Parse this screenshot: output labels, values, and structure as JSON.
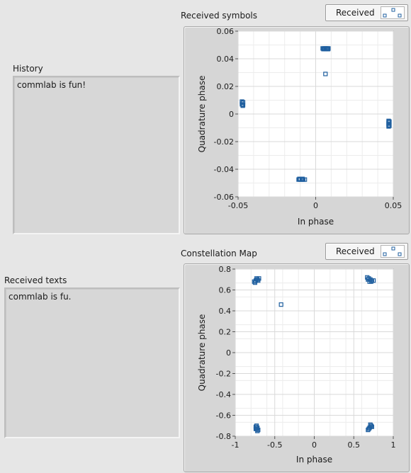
{
  "history": {
    "label": "History",
    "text": "commlab is fun!"
  },
  "received_texts": {
    "label": "Received texts",
    "text": "commlab is fu."
  },
  "legend_label": "Received",
  "marker_color": "#1f5f9f",
  "chart_data": [
    {
      "type": "scatter",
      "title": "Received symbols",
      "xlabel": "In phase",
      "ylabel": "Quadrature phase",
      "xlim": [
        -0.05,
        0.05
      ],
      "ylim": [
        -0.06,
        0.06
      ],
      "xticks": [
        "-0.05",
        "0",
        "0.05"
      ],
      "xtick_values": [
        -0.05,
        0,
        0.05
      ],
      "yticks": [
        "0.06",
        "0.04",
        "0.02",
        "0",
        "-0.02",
        "-0.04",
        "-0.06"
      ],
      "ytick_values": [
        0.06,
        0.04,
        0.02,
        0,
        -0.02,
        -0.04,
        -0.06
      ],
      "grid": true,
      "legend": "top-right",
      "series": [
        {
          "name": "Received",
          "points": [
            [
              0.0045,
              0.0475
            ],
            [
              0.0055,
              0.0475
            ],
            [
              0.0065,
              0.0475
            ],
            [
              0.0075,
              0.0475
            ],
            [
              0.0082,
              0.0475
            ],
            [
              0.005,
              0.047
            ],
            [
              0.006,
              0.047
            ],
            [
              0.007,
              0.047
            ],
            [
              0.008,
              0.047
            ],
            [
              0.0063,
              0.029
            ],
            [
              -0.0475,
              0.009
            ],
            [
              -0.0475,
              0.008
            ],
            [
              -0.0475,
              0.007
            ],
            [
              -0.047,
              0.006
            ],
            [
              -0.0468,
              0.0085
            ],
            [
              -0.0468,
              0.0065
            ],
            [
              0.047,
              -0.005
            ],
            [
              0.047,
              -0.006
            ],
            [
              0.047,
              -0.007
            ],
            [
              0.047,
              -0.008
            ],
            [
              0.047,
              -0.009
            ],
            [
              0.0475,
              -0.0055
            ],
            [
              0.0475,
              -0.0085
            ],
            [
              -0.011,
              -0.0475
            ],
            [
              -0.01,
              -0.0475
            ],
            [
              -0.009,
              -0.0475
            ],
            [
              -0.008,
              -0.0475
            ],
            [
              -0.007,
              -0.0475
            ],
            [
              -0.0105,
              -0.047
            ],
            [
              -0.0085,
              -0.047
            ]
          ]
        }
      ]
    },
    {
      "type": "scatter",
      "title": "Constellation Map",
      "xlabel": "In phase",
      "ylabel": "Quadrature phase",
      "xlim": [
        -1,
        1
      ],
      "ylim": [
        -0.8,
        0.8
      ],
      "xticks": [
        "-1",
        "-0.5",
        "0",
        "0.5",
        "1"
      ],
      "xtick_values": [
        -1,
        -0.5,
        0,
        0.5,
        1
      ],
      "yticks": [
        "0.8",
        "0.6",
        "0.4",
        "0.2",
        "0",
        "-0.2",
        "-0.4",
        "-0.6",
        "-0.8"
      ],
      "ytick_values": [
        0.8,
        0.6,
        0.4,
        0.2,
        0,
        -0.2,
        -0.4,
        -0.6,
        -0.8
      ],
      "grid": true,
      "legend": "top-right",
      "series": [
        {
          "name": "Received",
          "points": [
            [
              -0.76,
              0.68
            ],
            [
              -0.74,
              0.69
            ],
            [
              -0.72,
              0.7
            ],
            [
              -0.7,
              0.71
            ],
            [
              -0.75,
              0.67
            ],
            [
              -0.71,
              0.69
            ],
            [
              -0.73,
              0.71
            ],
            [
              0.67,
              0.72
            ],
            [
              0.69,
              0.71
            ],
            [
              0.71,
              0.7
            ],
            [
              0.73,
              0.69
            ],
            [
              0.7,
              0.68
            ],
            [
              0.72,
              0.68
            ],
            [
              0.68,
              0.7
            ],
            [
              0.75,
              0.69
            ],
            [
              -0.42,
              0.46
            ],
            [
              -0.74,
              -0.71
            ],
            [
              -0.72,
              -0.72
            ],
            [
              -0.73,
              -0.73
            ],
            [
              -0.71,
              -0.74
            ],
            [
              -0.73,
              -0.7
            ],
            [
              -0.72,
              -0.75
            ],
            [
              -0.74,
              -0.73
            ],
            [
              0.72,
              -0.7
            ],
            [
              0.71,
              -0.71
            ],
            [
              0.7,
              -0.72
            ],
            [
              0.69,
              -0.73
            ],
            [
              0.68,
              -0.74
            ],
            [
              0.71,
              -0.69
            ],
            [
              0.73,
              -0.71
            ]
          ]
        }
      ]
    }
  ]
}
